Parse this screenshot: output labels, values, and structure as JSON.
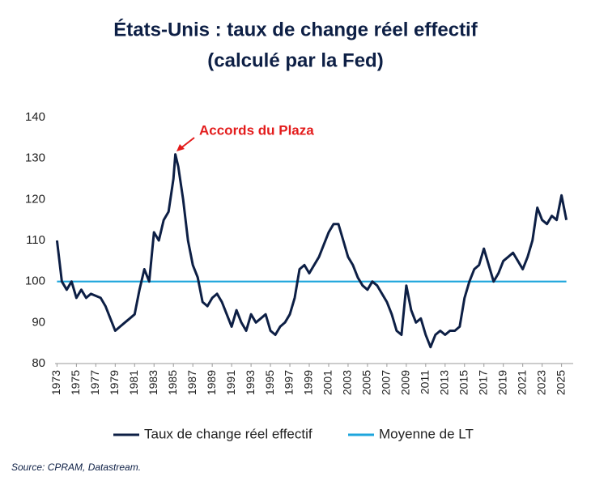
{
  "chart_data": {
    "type": "line",
    "title": "États-Unis : taux de change réel effectif",
    "subtitle": "(calculé par la Fed)",
    "annotation": "Accords du Plaza",
    "source": "Source: CPRAM, Datastream.",
    "xlim": [
      1972.8,
      2026.2
    ],
    "xticks": [
      1973,
      1975,
      1977,
      1979,
      1981,
      1983,
      1985,
      1987,
      1989,
      1991,
      1993,
      1995,
      1997,
      1999,
      2001,
      2003,
      2005,
      2007,
      2009,
      2011,
      2013,
      2015,
      2017,
      2019,
      2021,
      2023,
      2025
    ],
    "ylim": [
      80,
      140
    ],
    "yticks": [
      80,
      90,
      100,
      110,
      120,
      130,
      140
    ],
    "series": [
      {
        "name": "Taux de change réel effectif",
        "color": "#0d1f45",
        "x": [
          1973,
          1973.5,
          1974,
          1974.5,
          1975,
          1975.5,
          1976,
          1976.5,
          1977,
          1977.5,
          1978,
          1978.5,
          1979,
          1979.5,
          1980,
          1980.5,
          1981,
          1981.5,
          1982,
          1982.5,
          1983,
          1983.5,
          1984,
          1984.5,
          1985,
          1985.2,
          1985.5,
          1986,
          1986.5,
          1987,
          1987.5,
          1988,
          1988.5,
          1989,
          1989.5,
          1990,
          1990.5,
          1991,
          1991.5,
          1992,
          1992.5,
          1993,
          1993.5,
          1994,
          1994.5,
          1995,
          1995.5,
          1996,
          1996.5,
          1997,
          1997.5,
          1998,
          1998.5,
          1999,
          1999.5,
          2000,
          2000.5,
          2001,
          2001.5,
          2002,
          2002.5,
          2003,
          2003.5,
          2004,
          2004.5,
          2005,
          2005.5,
          2006,
          2006.5,
          2007,
          2007.5,
          2008,
          2008.5,
          2009,
          2009.5,
          2010,
          2010.5,
          2011,
          2011.5,
          2012,
          2012.5,
          2013,
          2013.5,
          2014,
          2014.5,
          2015,
          2015.5,
          2016,
          2016.5,
          2017,
          2017.5,
          2018,
          2018.5,
          2019,
          2019.5,
          2020,
          2020.5,
          2021,
          2021.5,
          2022,
          2022.5,
          2023,
          2023.5,
          2024,
          2024.5,
          2025,
          2025.5
        ],
        "values": [
          110,
          100,
          98,
          100,
          96,
          98,
          96,
          97,
          96.5,
          96,
          94,
          91,
          88,
          89,
          90,
          91,
          92,
          98,
          103,
          100,
          112,
          110,
          115,
          117,
          125,
          131,
          128,
          120,
          110,
          104,
          101,
          95,
          94,
          96,
          97,
          95,
          92,
          89,
          93,
          90,
          88,
          92,
          90,
          91,
          92,
          88,
          87,
          89,
          90,
          92,
          96,
          103,
          104,
          102,
          104,
          106,
          109,
          112,
          114,
          114,
          110,
          106,
          104,
          101,
          99,
          98,
          100,
          99,
          97,
          95,
          92,
          88,
          87,
          99,
          93,
          90,
          91,
          87,
          84,
          87,
          88,
          87,
          88,
          88,
          89,
          96,
          100,
          103,
          104,
          108,
          104,
          100,
          102,
          105,
          106,
          107,
          105,
          103,
          106,
          110,
          118,
          115,
          114,
          116,
          115,
          121,
          115
        ]
      },
      {
        "name": "Moyenne de LT",
        "color": "#1ea5dc",
        "x": [
          1973,
          2025.5
        ],
        "values": [
          100,
          100
        ]
      }
    ]
  }
}
